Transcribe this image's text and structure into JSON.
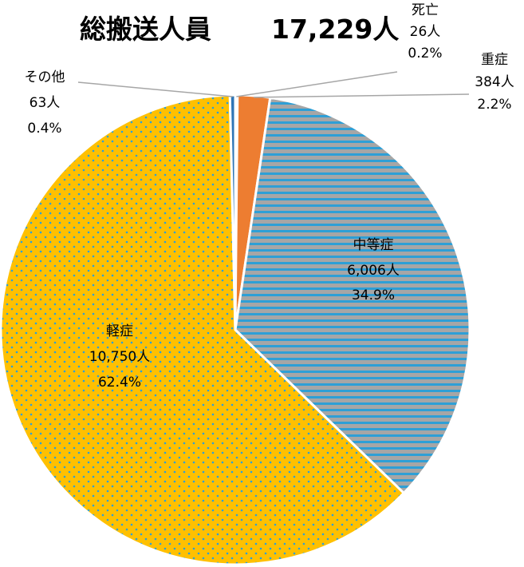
{
  "chart_data": {
    "type": "pie",
    "title": "総搬送人員",
    "total": "17,229人",
    "slices": [
      {
        "name": "死亡",
        "count_label": "26人",
        "percent_label": "0.2%",
        "value": 26,
        "color": "#a6a6a6"
      },
      {
        "name": "重症",
        "count_label": "384人",
        "percent_label": "2.2%",
        "value": 384,
        "color": "#ed7d31"
      },
      {
        "name": "中等症",
        "count_label": "6,006人",
        "percent_label": "34.9%",
        "value": 6006,
        "color": "#a6a6a6",
        "stripe": "#2e9fd6"
      },
      {
        "name": "軽症",
        "count_label": "10,750人",
        "percent_label": "62.4%",
        "value": 10750,
        "color": "#ffc000",
        "dots": "#2e9fd6"
      },
      {
        "name": "その他",
        "count_label": "63人",
        "percent_label": "0.4%",
        "value": 63,
        "color": "#2e75b6"
      }
    ]
  }
}
